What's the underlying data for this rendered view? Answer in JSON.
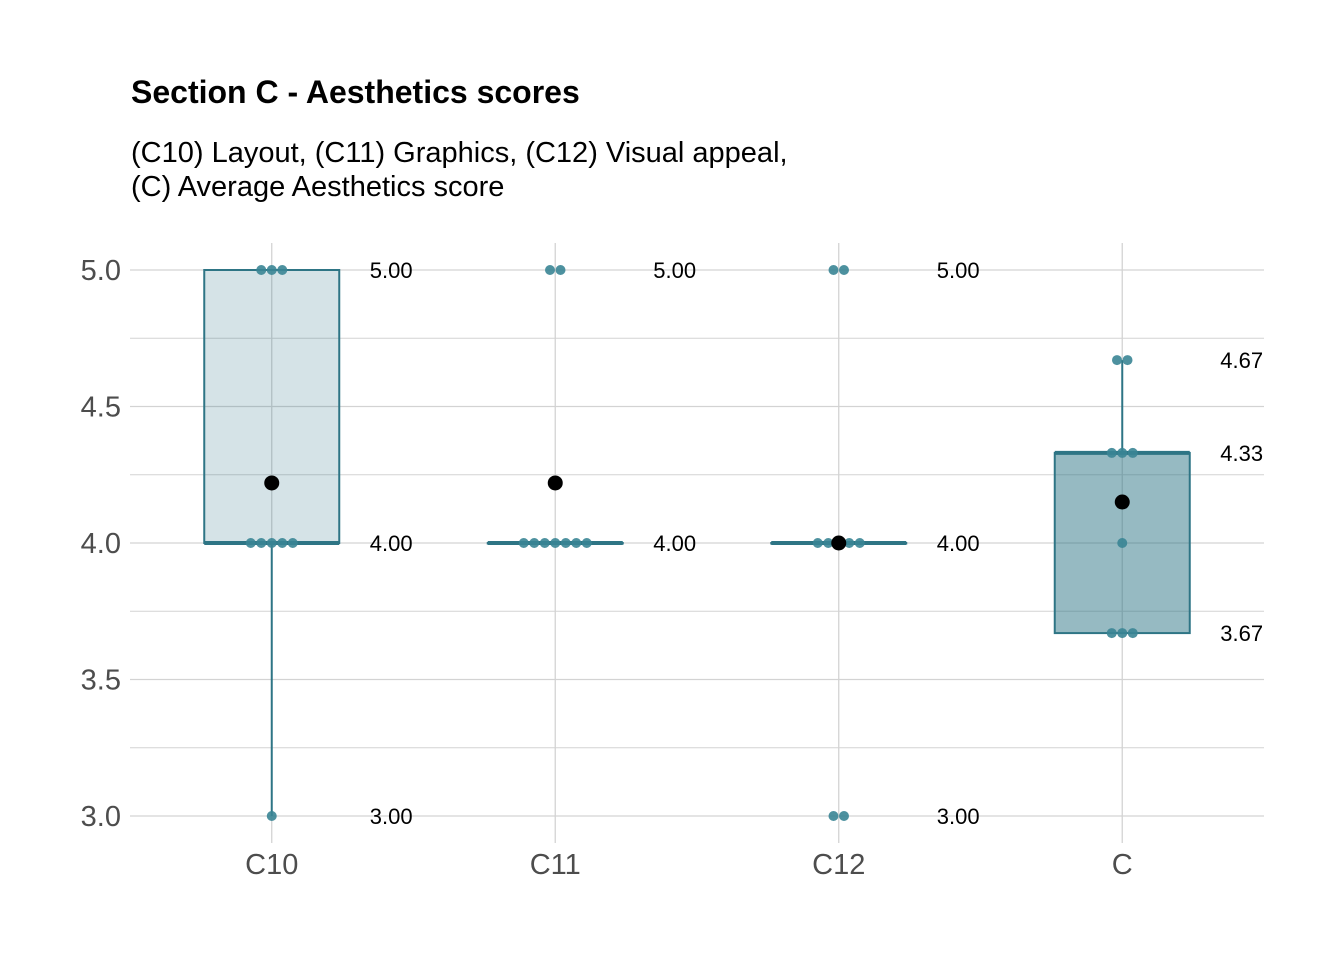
{
  "chart_data": {
    "type": "boxplot",
    "title": "Section C - Aesthetics scores",
    "subtitle_lines": [
      "(C10) Layout, (C11) Graphics, (C12) Visual appeal,",
      "(C) Average Aesthetics score"
    ],
    "xlabel": "",
    "ylabel": "",
    "ylim": [
      2.9,
      5.1
    ],
    "y_ticks": [
      3.0,
      3.5,
      4.0,
      4.5,
      5.0
    ],
    "y_tick_labels": [
      "3.0",
      "3.5",
      "4.0",
      "4.5",
      "5.0"
    ],
    "y_minor_gridlines": [
      3.25,
      3.75,
      4.25,
      4.75
    ],
    "grid": true,
    "categories": [
      "C10",
      "C11",
      "C12",
      "C"
    ],
    "boxes": [
      {
        "category": "C10",
        "min": 3.0,
        "q1": 4.0,
        "median": 4.0,
        "q3": 5.0,
        "max": 5.0,
        "mean": 4.22,
        "fill_opacity": 0.2,
        "points": [
          5,
          5,
          5,
          4,
          4,
          4,
          4,
          4,
          3
        ],
        "labels": [
          {
            "value": 5.0,
            "text": "5.00"
          },
          {
            "value": 4.0,
            "text": "4.00"
          },
          {
            "value": 3.0,
            "text": "3.00"
          }
        ]
      },
      {
        "category": "C11",
        "min": 4.0,
        "q1": 4.0,
        "median": 4.0,
        "q3": 4.0,
        "max": 4.0,
        "mean": 4.22,
        "fill_opacity": 0.2,
        "points": [
          5,
          5,
          4,
          4,
          4,
          4,
          4,
          4,
          4
        ],
        "labels": [
          {
            "value": 5.0,
            "text": "5.00"
          },
          {
            "value": 4.0,
            "text": "4.00"
          }
        ]
      },
      {
        "category": "C12",
        "min": 4.0,
        "q1": 4.0,
        "median": 4.0,
        "q3": 4.0,
        "max": 4.0,
        "mean": 4.0,
        "fill_opacity": 0.2,
        "points": [
          5,
          5,
          4,
          4,
          4,
          4,
          4,
          3,
          3
        ],
        "labels": [
          {
            "value": 5.0,
            "text": "5.00"
          },
          {
            "value": 4.0,
            "text": "4.00"
          },
          {
            "value": 3.0,
            "text": "3.00"
          }
        ]
      },
      {
        "category": "C",
        "min": 3.67,
        "q1": 3.67,
        "median": 4.33,
        "q3": 4.33,
        "max": 4.67,
        "mean": 4.15,
        "fill_opacity": 0.5,
        "points": [
          4.67,
          4.67,
          4.33,
          4.33,
          4.33,
          4.0,
          3.67,
          3.67,
          3.67
        ],
        "labels": [
          {
            "value": 4.67,
            "text": "4.67"
          },
          {
            "value": 4.33,
            "text": "4.33"
          },
          {
            "value": 3.67,
            "text": "3.67"
          }
        ]
      }
    ],
    "colors": {
      "box": "#2e7585",
      "point": "#3a8595",
      "mean": "#000000",
      "grid": "#d3d3d3",
      "tick_text": "#4d4d4d"
    }
  }
}
